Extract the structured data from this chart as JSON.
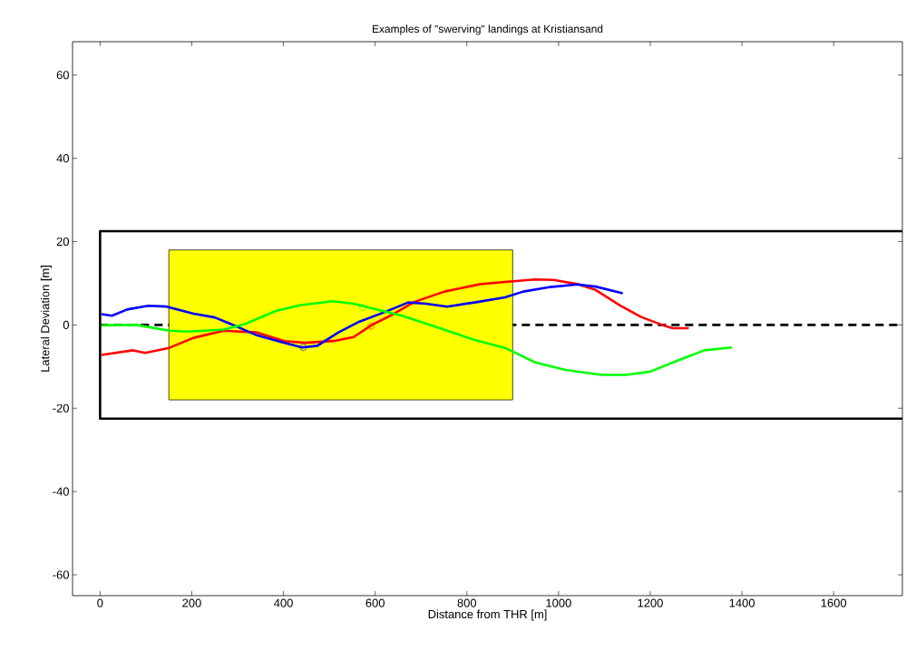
{
  "chart_data": {
    "type": "line",
    "title": "Examples of \"swerving\" landings at Kristiansand",
    "xlabel": "Distance from THR [m]",
    "ylabel": "Lateral Deviation [m]",
    "xlim": [
      -60,
      1750
    ],
    "ylim": [
      -65,
      68
    ],
    "xticks": [
      0,
      200,
      400,
      600,
      800,
      1000,
      1200,
      1400,
      1600
    ],
    "yticks": [
      -60,
      -40,
      -20,
      0,
      20,
      40,
      60
    ],
    "grid": false,
    "series": [
      {
        "color": "#000000",
        "x": [
          1750,
          0,
          0,
          1750
        ],
        "values": [
          22.5,
          22.5,
          -22.5,
          -22.5
        ]
      },
      {
        "color": "#000000",
        "line_style": "dashed",
        "x": [
          0,
          1750
        ],
        "values": [
          0,
          0
        ]
      },
      {
        "type": "area",
        "color": "#ffff00",
        "x": [
          150,
          150,
          900,
          900,
          150
        ],
        "values": [
          -18,
          18,
          18,
          -18,
          -18
        ]
      },
      {
        "color": "#ff0000",
        "x": [
          3,
          72,
          98,
          151,
          204,
          270,
          342,
          402,
          448,
          514,
          553,
          593,
          633,
          685,
          751,
          830,
          883,
          949,
          989,
          1041,
          1081,
          1134,
          1180,
          1226,
          1249,
          1284
        ],
        "values": [
          -7.2,
          -6.1,
          -6.7,
          -5.5,
          -3.1,
          -1.4,
          -1.8,
          -3.9,
          -4.3,
          -3.8,
          -2.9,
          0,
          2.2,
          5.5,
          8.0,
          9.8,
          10.3,
          10.9,
          10.8,
          9.8,
          8.4,
          4.7,
          1.9,
          0,
          -0.8,
          -0.8
        ]
      },
      {
        "color": "#0000ff",
        "x": [
          3,
          26,
          59,
          105,
          145,
          204,
          250,
          290,
          342,
          395,
          441,
          474,
          520,
          566,
          619,
          672,
          711,
          757,
          823,
          883,
          923,
          982,
          1041,
          1081,
          1140
        ],
        "values": [
          2.6,
          2.2,
          3.7,
          4.6,
          4.4,
          2.7,
          1.8,
          0,
          -2.5,
          -4.1,
          -5.4,
          -5.0,
          -1.8,
          0.8,
          3.0,
          5.4,
          5.1,
          4.4,
          5.5,
          6.6,
          8.0,
          9.1,
          9.7,
          9.2,
          7.6
        ]
      },
      {
        "color": "#00ff00",
        "x": [
          3,
          79,
          151,
          191,
          270,
          316,
          382,
          435,
          507,
          553,
          606,
          659,
          738,
          817,
          883,
          949,
          1015,
          1094,
          1147,
          1200,
          1266,
          1318,
          1378
        ],
        "values": [
          -0.1,
          0.0,
          -1.4,
          -1.6,
          -1.1,
          0.2,
          3.3,
          4.7,
          5.7,
          5.1,
          3.6,
          2.2,
          -0.7,
          -3.6,
          -5.5,
          -9.0,
          -10.8,
          -12.0,
          -12.0,
          -11.2,
          -8.3,
          -6.1,
          -5.4
        ]
      },
      {
        "type": "scatter",
        "marker": "circle",
        "color": "#0000ff",
        "x": [
          443
        ],
        "values": [
          -5.4
        ]
      },
      {
        "type": "scatter",
        "marker": "circle",
        "color": "#00ff00",
        "x": [
          573
        ],
        "values": [
          4.2
        ]
      },
      {
        "type": "scatter",
        "marker": "circle",
        "color": "#ff0000",
        "x": [
          591
        ],
        "values": [
          -0.3
        ]
      }
    ]
  }
}
